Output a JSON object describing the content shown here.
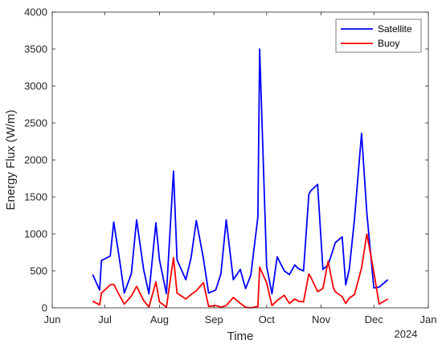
{
  "chart_data": {
    "type": "line",
    "xlabel": "Time",
    "ylabel": "Energy Flux (W/m)",
    "x_tick_labels": [
      "Jun",
      "Jul",
      "Aug",
      "Sep",
      "Oct",
      "Nov",
      "Dec",
      "Jan"
    ],
    "x_year_label": "2024",
    "y_ticks": [
      0,
      500,
      1000,
      1500,
      2000,
      2500,
      3000,
      3500,
      4000
    ],
    "ylim": [
      0,
      4000
    ],
    "xlim": [
      "2024-06-01",
      "2025-01-01"
    ],
    "grid": false,
    "legend_position": "top-right",
    "series": [
      {
        "name": "Satellite",
        "color": "#0000ff",
        "x": [
          "2024-06-24",
          "2024-06-28",
          "2024-06-29",
          "2024-07-04",
          "2024-07-06",
          "2024-07-09",
          "2024-07-12",
          "2024-07-16",
          "2024-07-19",
          "2024-07-23",
          "2024-07-26",
          "2024-07-30",
          "2024-08-01",
          "2024-08-05",
          "2024-08-09",
          "2024-08-11",
          "2024-08-16",
          "2024-08-19",
          "2024-08-22",
          "2024-08-26",
          "2024-08-29",
          "2024-09-02",
          "2024-09-05",
          "2024-09-08",
          "2024-09-12",
          "2024-09-16",
          "2024-09-19",
          "2024-09-22",
          "2024-09-26",
          "2024-09-27",
          "2024-10-01",
          "2024-10-04",
          "2024-10-07",
          "2024-10-11",
          "2024-10-14",
          "2024-10-17",
          "2024-10-19",
          "2024-10-22",
          "2024-10-25",
          "2024-10-26",
          "2024-10-30",
          "2024-11-02",
          "2024-11-05",
          "2024-11-08",
          "2024-11-09",
          "2024-11-13",
          "2024-11-15",
          "2024-11-17",
          "2024-11-20",
          "2024-11-24",
          "2024-11-27",
          "2024-12-01",
          "2024-12-04",
          "2024-12-09"
        ],
        "y": [
          450,
          240,
          640,
          700,
          1160,
          700,
          200,
          460,
          1190,
          520,
          190,
          1150,
          650,
          190,
          1850,
          650,
          380,
          680,
          1180,
          670,
          200,
          240,
          460,
          1190,
          380,
          520,
          260,
          440,
          1230,
          3500,
          560,
          190,
          690,
          500,
          450,
          580,
          530,
          500,
          1530,
          1580,
          1670,
          520,
          580,
          800,
          880,
          960,
          310,
          520,
          1200,
          2360,
          1280,
          270,
          280,
          380
        ]
      },
      {
        "name": "Buoy",
        "color": "#ff0000",
        "x": [
          "2024-06-24",
          "2024-06-28",
          "2024-06-29",
          "2024-07-04",
          "2024-07-06",
          "2024-07-09",
          "2024-07-12",
          "2024-07-16",
          "2024-07-19",
          "2024-07-23",
          "2024-07-26",
          "2024-07-30",
          "2024-08-01",
          "2024-08-05",
          "2024-08-09",
          "2024-08-11",
          "2024-08-16",
          "2024-08-19",
          "2024-08-22",
          "2024-08-26",
          "2024-08-29",
          "2024-09-02",
          "2024-09-05",
          "2024-09-08",
          "2024-09-12",
          "2024-09-16",
          "2024-09-19",
          "2024-09-22",
          "2024-09-26",
          "2024-09-27",
          "2024-10-01",
          "2024-10-04",
          "2024-10-07",
          "2024-10-11",
          "2024-10-14",
          "2024-10-17",
          "2024-10-19",
          "2024-10-22",
          "2024-10-25",
          "2024-10-26",
          "2024-10-30",
          "2024-11-02",
          "2024-11-05",
          "2024-11-08",
          "2024-11-09",
          "2024-11-13",
          "2024-11-15",
          "2024-11-17",
          "2024-11-20",
          "2024-11-24",
          "2024-11-27",
          "2024-12-01",
          "2024-12-04",
          "2024-12-09"
        ],
        "y": [
          90,
          40,
          200,
          310,
          320,
          180,
          50,
          160,
          290,
          100,
          10,
          350,
          80,
          10,
          680,
          200,
          120,
          180,
          230,
          340,
          20,
          30,
          10,
          30,
          140,
          60,
          10,
          0,
          20,
          550,
          340,
          30,
          100,
          170,
          60,
          120,
          90,
          80,
          460,
          420,
          220,
          260,
          630,
          270,
          220,
          150,
          60,
          130,
          180,
          540,
          1000,
          480,
          50,
          120
        ]
      }
    ]
  }
}
